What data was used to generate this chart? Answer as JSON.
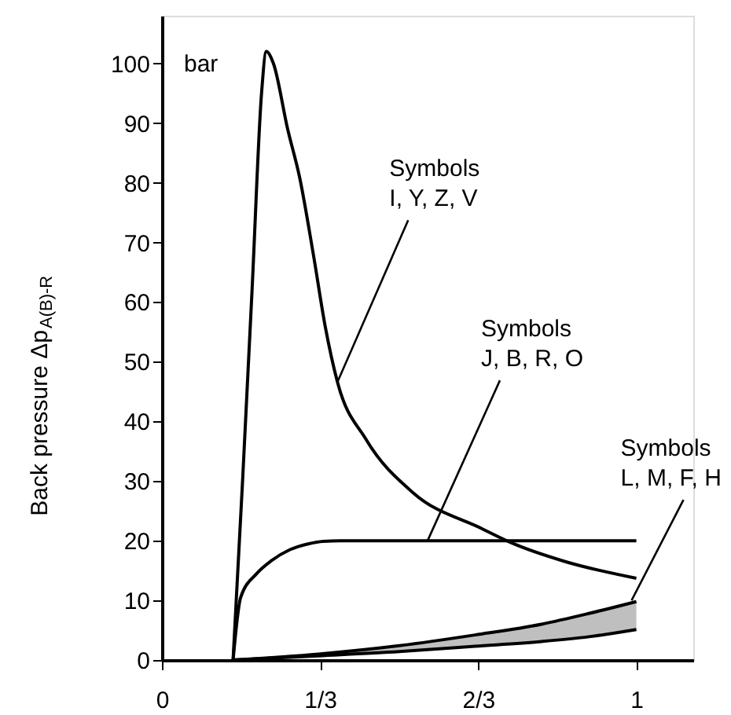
{
  "chart_data": {
    "type": "line",
    "ylabel": "Back pressure Δp$_{A(B)-R}$",
    "xlim": [
      0,
      1.12
    ],
    "ylim": [
      0,
      108
    ],
    "xticks": [
      0,
      {
        "value": 0.3333,
        "label": "1/3"
      },
      {
        "value": 0.6667,
        "label": "2/3"
      },
      1
    ],
    "yticks": [
      0,
      10,
      20,
      30,
      40,
      50,
      60,
      70,
      80,
      90,
      100
    ],
    "grid": false,
    "series": [
      {
        "color": "#000000",
        "x": [
          0.15,
          0.17,
          0.19,
          0.21,
          0.22,
          0.235,
          0.265,
          0.29,
          0.32,
          0.344,
          0.37,
          0.43,
          0.53,
          0.675,
          0.735,
          0.85,
          1.0
        ],
        "values": [
          0,
          30,
          62,
          95,
          102,
          100,
          89,
          81,
          67.6,
          56,
          46.6,
          37,
          28,
          22,
          19.7,
          16.5,
          13.7
        ]
      },
      {
        "color": "#000000",
        "x": [
          0.15,
          0.166,
          0.2,
          0.23,
          0.27,
          0.31,
          0.34,
          0.377,
          0.6,
          1.0
        ],
        "values": [
          0,
          10.5,
          14.5,
          16.6,
          18.5,
          19.5,
          19.9,
          20,
          20,
          20
        ]
      },
      {
        "color": "#000000",
        "x": [
          0.15,
          0.33,
          0.5,
          0.66,
          0.8,
          0.9,
          1.0
        ],
        "values": [
          0,
          1,
          2.4,
          4.2,
          6,
          7.8,
          9.8
        ]
      },
      {
        "color": "#000000",
        "x": [
          0.15,
          0.33,
          0.5,
          0.66,
          0.8,
          0.9,
          1.0
        ],
        "values": [
          0,
          0.7,
          1.4,
          2.3,
          3.1,
          3.9,
          5.1
        ],
        "lower": [
          0,
          0.7,
          1.4,
          2.3,
          3.1,
          3.9,
          5.1
        ],
        "upper": [
          0,
          1,
          2.4,
          4.2,
          6,
          7.8,
          9.8
        ]
      }
    ],
    "annotations": [
      "bar",
      {
        "text": "Symbols\nI, Y, Z, V",
        "x": 0.37,
        "y": 46.6
      },
      {
        "text": "Symbols\nJ, B, R, O",
        "x": 0.56,
        "y": 20
      },
      {
        "text": "Symbols\nL, M, F, H",
        "x": 0.99,
        "y": 10
      }
    ]
  }
}
